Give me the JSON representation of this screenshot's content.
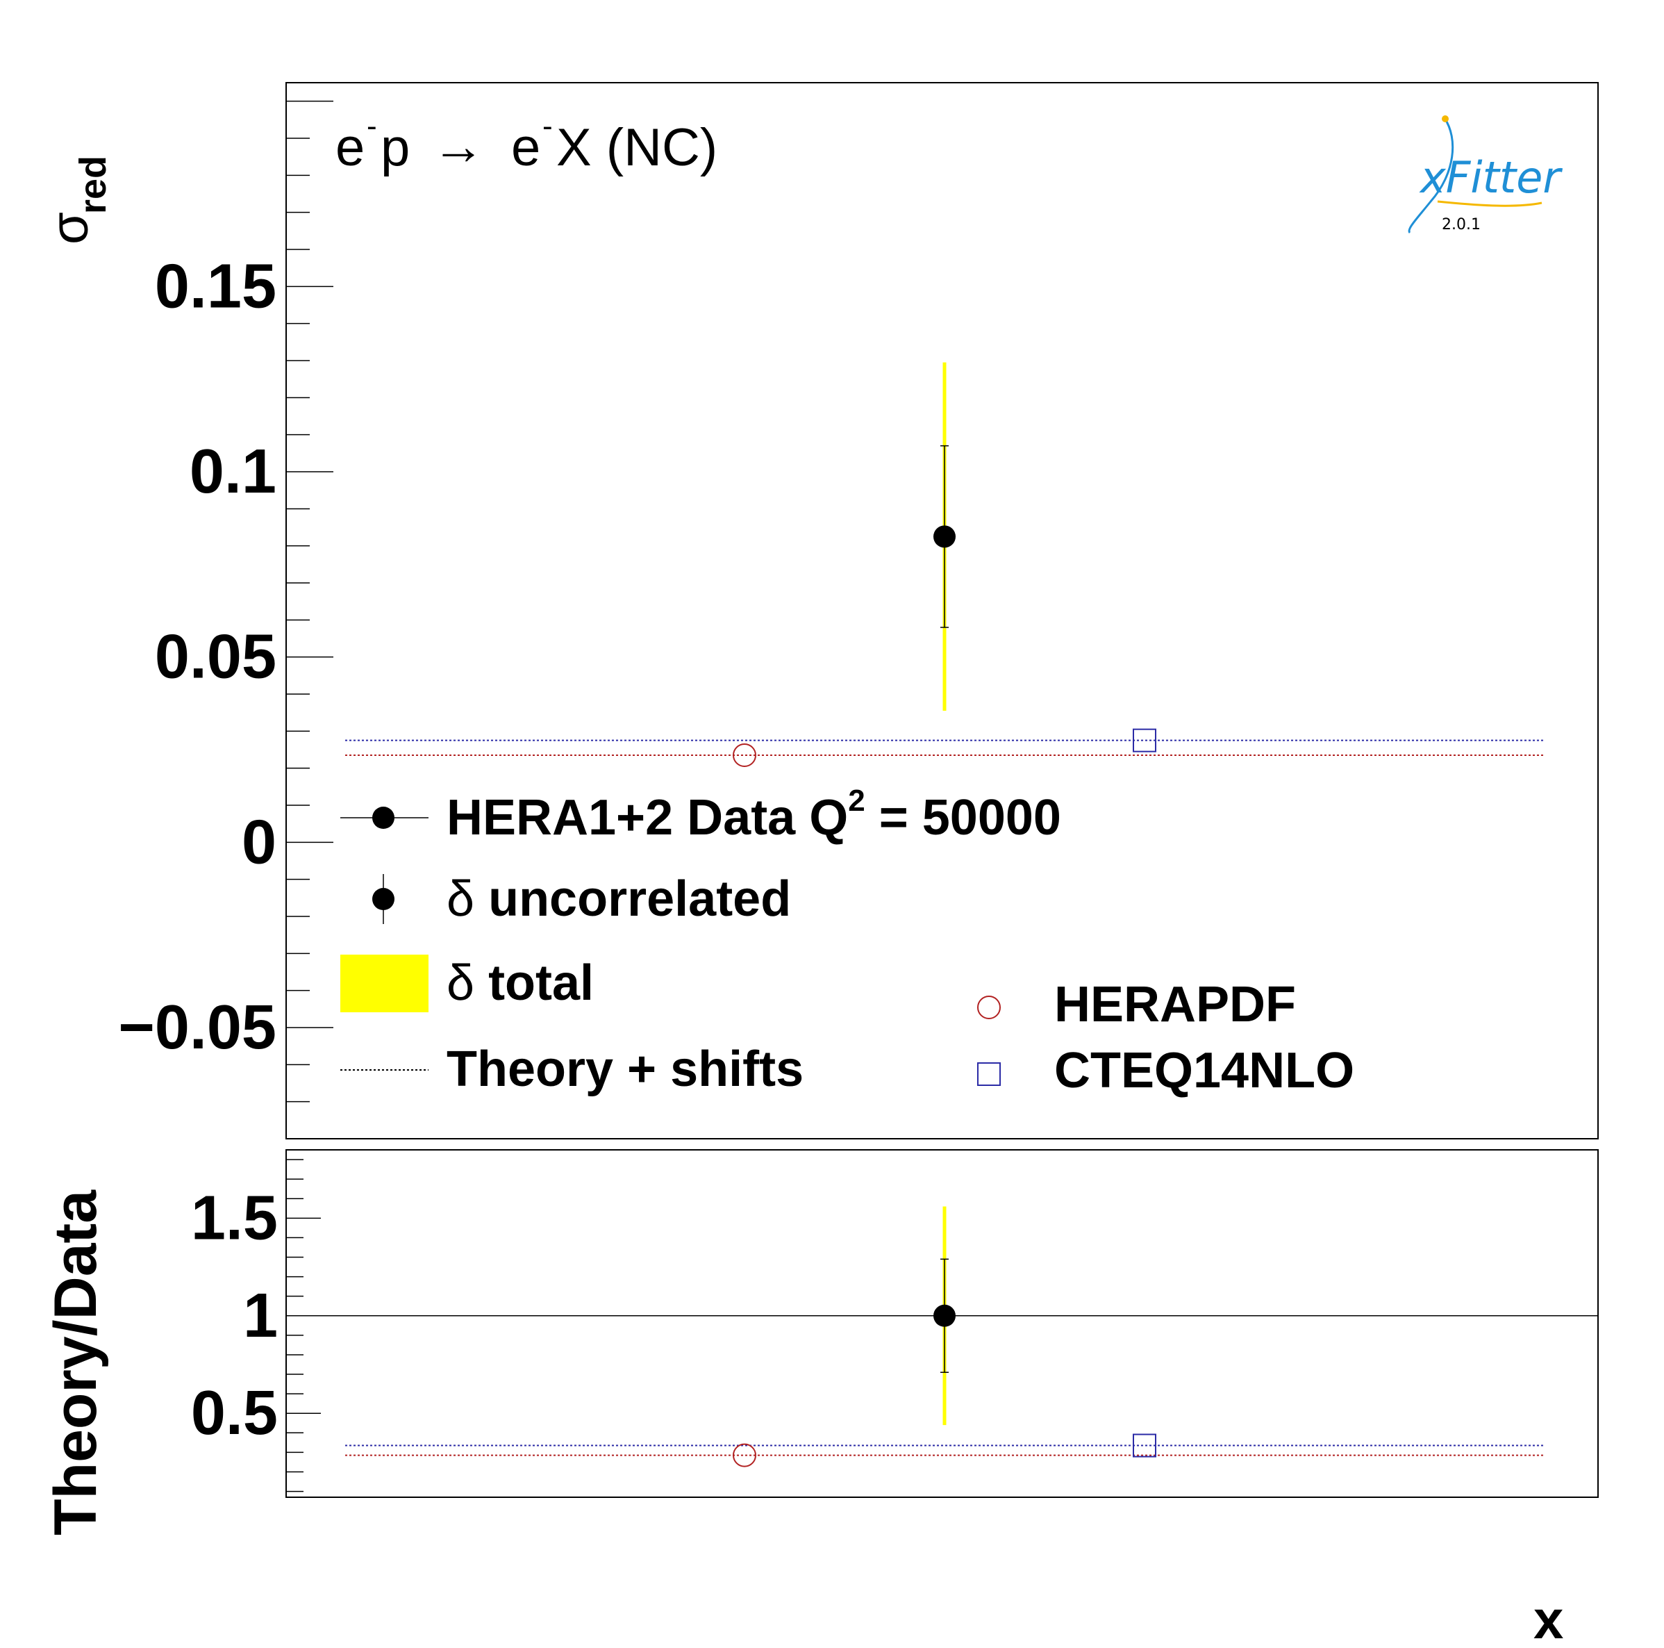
{
  "process": {
    "e1": "e",
    "sup1": "-",
    "p": "p",
    "arrow": "→",
    "e2": "e",
    "sup2": "-",
    "rest": "X (NC)"
  },
  "logo": {
    "text": "xFitter",
    "version": "2.0.1",
    "color": "#1f8fd6",
    "accent": "#f5b800"
  },
  "legend": {
    "data_label": "HERA1+2 Data Q",
    "data_sup": "2",
    "data_value": " = 50000",
    "uncorrelated_symbol": "δ",
    "uncorrelated_label": " uncorrelated",
    "total_symbol": "δ",
    "total_label": " total",
    "theory_label": "Theory + shifts",
    "herapdf_label": "HERAPDF",
    "cteq_label": "CTEQ14NLO"
  },
  "colors": {
    "total_band": "#ffff00",
    "herapdf": "#b22222",
    "cteq": "#2b2ba6",
    "data": "#000000"
  },
  "chart_data": [
    {
      "type": "scatter",
      "ylabel_main": "σ",
      "ylabel_sub": "red",
      "ylim": [
        -0.08,
        0.205
      ],
      "yticks": [
        "0.15",
        "0.1",
        "0.05",
        "0",
        "−0.05"
      ],
      "ytick_values": [
        0.15,
        0.1,
        0.05,
        0,
        -0.05
      ],
      "grid": false,
      "legend_position": "bottom-left",
      "data": {
        "y": 0.0825,
        "err_uncorrelated": 0.0245,
        "err_total": 0.047
      },
      "series": [
        {
          "name": "HERAPDF",
          "marker": "open-circle",
          "y": 0.0235,
          "band": [
            0.0235,
            0.0235
          ]
        },
        {
          "name": "CTEQ14NLO",
          "marker": "open-square",
          "y": 0.0275,
          "band": [
            0.0275,
            0.0275
          ]
        }
      ]
    },
    {
      "type": "scatter",
      "ylabel": "Theory/Data",
      "xlabel": "x",
      "ylim": [
        0.07,
        1.85
      ],
      "yticks": [
        "1.5",
        "1",
        "0.5"
      ],
      "ytick_values": [
        1.5,
        1.0,
        0.5
      ],
      "reference_line": 1.0,
      "data": {
        "y": 1.0,
        "err_uncorrelated": 0.29,
        "err_total": 0.56
      },
      "series": [
        {
          "name": "HERAPDF",
          "marker": "open-circle",
          "y": 0.285
        },
        {
          "name": "CTEQ14NLO",
          "marker": "open-square",
          "y": 0.335
        }
      ]
    }
  ]
}
